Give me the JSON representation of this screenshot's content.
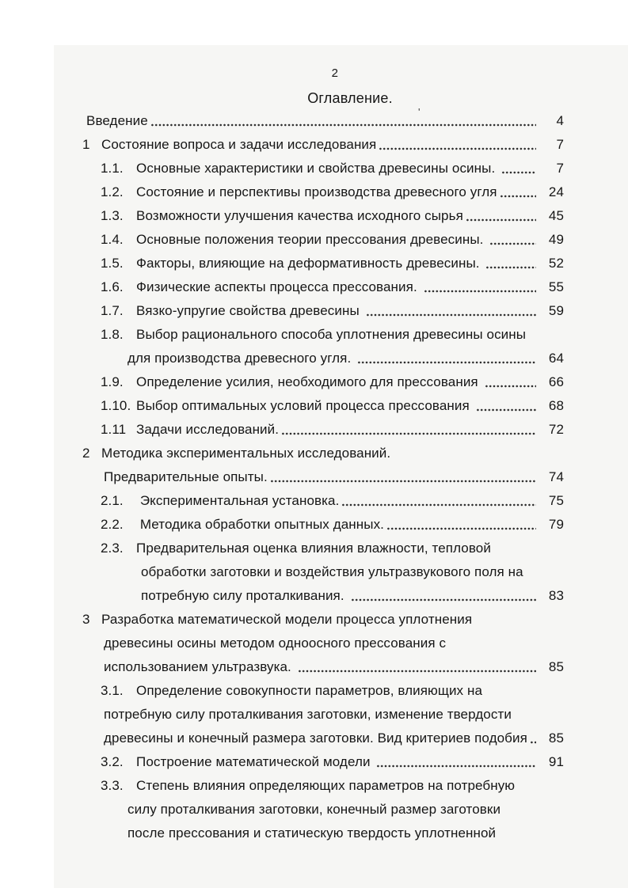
{
  "page": {
    "page_number": "2",
    "title": "Оглавление.",
    "artifact_mark": "'",
    "colors": {
      "page_bg": "#f6f6f4",
      "text": "#161616",
      "leader_dots": "#2b2b2b"
    }
  },
  "toc": {
    "rows": [
      {
        "indent": "intro",
        "num": "",
        "text": "Введение",
        "leader": true,
        "page": "4"
      },
      {
        "indent": "chapter",
        "num": "1",
        "text": "Состояние вопроса и задачи исследования",
        "leader": true,
        "page": "7"
      },
      {
        "indent": "section",
        "num": "1.1.",
        "text": "Основные характеристики и свойства древесины осины. ",
        "leader": true,
        "page": "7"
      },
      {
        "indent": "section",
        "num": "1.2.",
        "text": "Состояние и перспективы производства древесного угля",
        "leader": true,
        "page": "24"
      },
      {
        "indent": "section",
        "num": "1.3.",
        "text": "Возможности улучшения качества исходного сырья",
        "leader": true,
        "page": "45"
      },
      {
        "indent": "section",
        "num": "1.4.",
        "text": "Основные положения теории прессования древесины. ",
        "leader": true,
        "page": "49"
      },
      {
        "indent": "section",
        "num": "1.5.",
        "text": "Факторы, влияющие на деформативность древесины. ",
        "leader": true,
        "page": "52"
      },
      {
        "indent": "section",
        "num": "1.6.",
        "text": "Физические аспекты процесса прессования. ",
        "leader": true,
        "page": "55"
      },
      {
        "indent": "section",
        "num": "1.7.",
        "text": "Вязко-упругие свойства древесины ",
        "leader": true,
        "page": "59"
      },
      {
        "indent": "section",
        "num": "1.8.",
        "text": "Выбор рационального способа уплотнения древесины осины",
        "leader": false,
        "page": null
      },
      {
        "indent": "cont-wrap",
        "num": "",
        "text": "для производства древесного угля. ",
        "leader": true,
        "page": "64"
      },
      {
        "indent": "section",
        "num": "1.9.",
        "text": "Определение усилия, необходимого для прессования ",
        "leader": true,
        "page": "66"
      },
      {
        "indent": "section",
        "num": "1.10.",
        "text": "Выбор оптимальных условий процесса прессования ",
        "leader": true,
        "page": "68"
      },
      {
        "indent": "section",
        "num": "1.11",
        "text": "Задачи исследований.",
        "leader": true,
        "page": "72"
      },
      {
        "indent": "chapter",
        "num": "2",
        "text": "Методика экспериментальных исследований.",
        "leader": false,
        "page": null
      },
      {
        "indent": "cont-chapter",
        "num": "",
        "text": "Предварительные опыты.",
        "leader": true,
        "page": "74"
      },
      {
        "indent": "section",
        "num": "2.1.",
        "text": " Экспериментальная установка.",
        "leader": true,
        "page": "75"
      },
      {
        "indent": "section",
        "num": "2.2.",
        "text": " Методика обработки опытных данных.",
        "leader": true,
        "page": "79"
      },
      {
        "indent": "section",
        "num": "2.3.",
        "text": "Предварительная оценка влияния влажности, тепловой",
        "leader": false,
        "page": null
      },
      {
        "indent": "cont-section",
        "num": "",
        "text": "обработки заготовки и воздействия ультразвукового поля на",
        "leader": false,
        "page": null
      },
      {
        "indent": "cont-section",
        "num": "",
        "text": "потребную силу проталкивания. ",
        "leader": true,
        "page": "83"
      },
      {
        "indent": "chapter",
        "num": "3",
        "text": "Разработка математической модели процесса уплотнения",
        "leader": false,
        "page": null
      },
      {
        "indent": "cont-chapter",
        "num": "",
        "text": "древесины осины методом одноосного прессования с",
        "leader": false,
        "page": null
      },
      {
        "indent": "cont-chapter",
        "num": "",
        "text": "использованием ультразвука. ",
        "leader": true,
        "page": "85"
      },
      {
        "indent": "section",
        "num": "3.1.",
        "text": "Определение совокупности параметров, влияющих на",
        "leader": false,
        "page": null
      },
      {
        "indent": "cont-chapter",
        "num": "",
        "text": "потребную силу проталкивания заготовки, изменение твердости",
        "leader": false,
        "page": null
      },
      {
        "indent": "cont-chapter",
        "num": "",
        "text": "древесины и конечный размера заготовки. Вид критериев подобия",
        "leader": true,
        "page": "85"
      },
      {
        "indent": "section",
        "num": "3.2.",
        "text": "Построение математической модели ",
        "leader": true,
        "page": "91"
      },
      {
        "indent": "section",
        "num": "3.3.",
        "text": "Степень влияния определяющих параметров на потребную",
        "leader": false,
        "page": null
      },
      {
        "indent": "cont-wrap",
        "num": "",
        "text": "силу проталкивания заготовки, конечный размер заготовки",
        "leader": false,
        "page": null
      },
      {
        "indent": "cont-wrap",
        "num": "",
        "text": "после прессования и статическую твердость уплотненной",
        "leader": false,
        "page": null
      }
    ]
  }
}
